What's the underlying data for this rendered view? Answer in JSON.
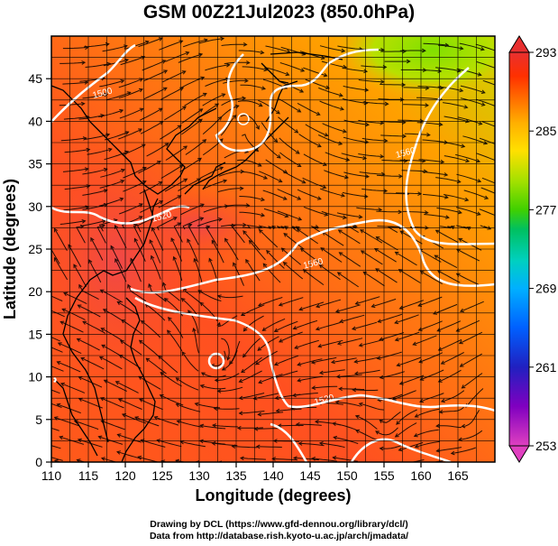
{
  "title": "GSM 00Z21Jul2023 (850.0hPa)",
  "x_axis": {
    "label": "Longitude (degrees)",
    "range": [
      110,
      170
    ],
    "ticks": [
      110,
      115,
      120,
      125,
      130,
      135,
      140,
      145,
      150,
      155,
      160,
      165
    ]
  },
  "y_axis": {
    "label": "Latitude  (degrees)",
    "range": [
      0,
      50
    ],
    "ticks": [
      0,
      5,
      10,
      15,
      20,
      25,
      30,
      35,
      40,
      45
    ]
  },
  "colorbar": {
    "min": 253,
    "max": 293,
    "tick_labels": [
      "293",
      "285",
      "277",
      "269",
      "261",
      "253"
    ],
    "tick_values": [
      293,
      285,
      277,
      269,
      261,
      253
    ],
    "colors": [
      "#e040c0",
      "#8000c0",
      "#2020c0",
      "#0060ff",
      "#00b0ff",
      "#00d0c0",
      "#00c060",
      "#40d000",
      "#a0e000",
      "#ffe000",
      "#ffb000",
      "#ff7000",
      "#ff3000",
      "#e83030"
    ]
  },
  "contour_labels": [
    {
      "text": "1500",
      "lon": 117,
      "lat": 43
    },
    {
      "text": "1520",
      "lon": 125,
      "lat": 28.5
    },
    {
      "text": "1560",
      "lon": 145.5,
      "lat": 23
    },
    {
      "text": "1560",
      "lon": 158,
      "lat": 36
    },
    {
      "text": "1520",
      "lon": 147,
      "lat": 7
    }
  ],
  "credits": {
    "line1": "Drawing by DCL (https://www.gfd-dennou.org/library/dcl/)",
    "line2": "Data from http://database.rish.kyoto-u.ac.jp/arch/jmadata/"
  }
}
